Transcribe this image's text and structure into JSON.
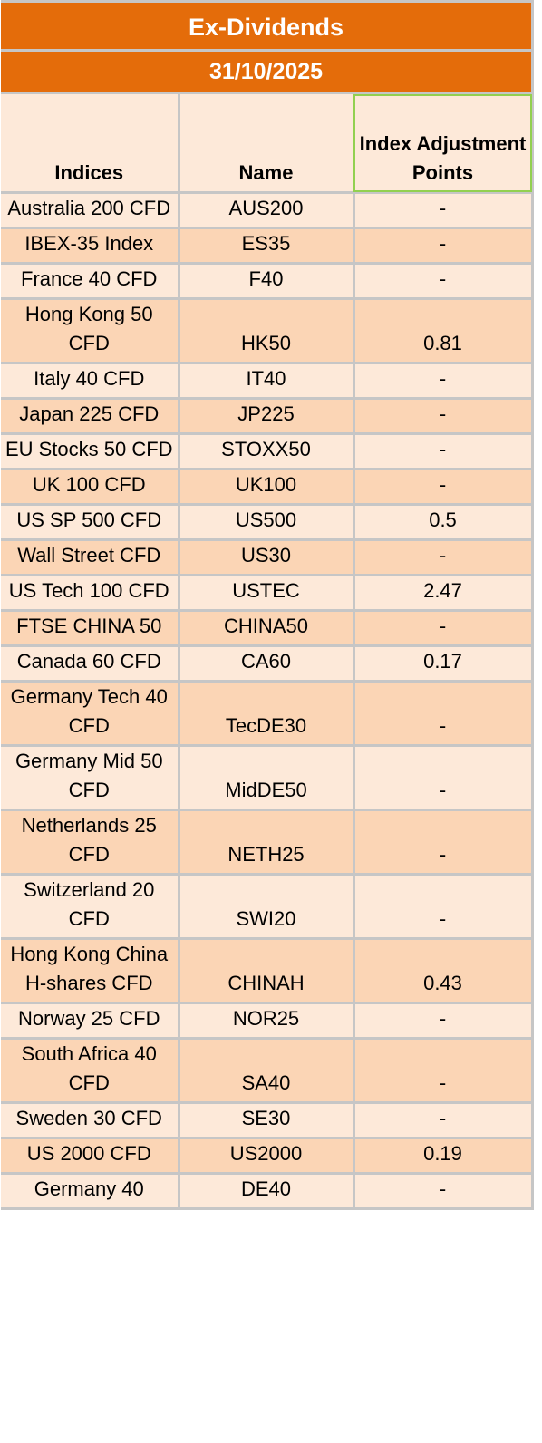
{
  "title": "Ex-Dividends",
  "date": "31/10/2025",
  "headers": {
    "indices": "Indices",
    "name": "Name",
    "points": "Index Adjustment Points"
  },
  "rows": [
    {
      "index": "Australia 200 CFD",
      "name": "AUS200",
      "points": "-"
    },
    {
      "index": "IBEX-35 Index",
      "name": "ES35",
      "points": "-"
    },
    {
      "index": "France 40 CFD",
      "name": "F40",
      "points": "-"
    },
    {
      "index": "Hong Kong 50 CFD",
      "name": "HK50",
      "points": "0.81"
    },
    {
      "index": "Italy 40 CFD",
      "name": "IT40",
      "points": "-"
    },
    {
      "index": "Japan 225 CFD",
      "name": "JP225",
      "points": "-"
    },
    {
      "index": "EU Stocks 50 CFD",
      "name": "STOXX50",
      "points": "-"
    },
    {
      "index": "UK 100 CFD",
      "name": "UK100",
      "points": "-"
    },
    {
      "index": "US SP 500 CFD",
      "name": "US500",
      "points": "0.5"
    },
    {
      "index": "Wall Street CFD",
      "name": "US30",
      "points": "-"
    },
    {
      "index": "US Tech 100 CFD",
      "name": "USTEC",
      "points": "2.47"
    },
    {
      "index": "FTSE CHINA 50",
      "name": "CHINA50",
      "points": "-"
    },
    {
      "index": "Canada 60 CFD",
      "name": "CA60",
      "points": "0.17"
    },
    {
      "index": "Germany Tech 40 CFD",
      "name": "TecDE30",
      "points": "-"
    },
    {
      "index": "Germany Mid 50 CFD",
      "name": "MidDE50",
      "points": "-"
    },
    {
      "index": "Netherlands 25 CFD",
      "name": "NETH25",
      "points": "-"
    },
    {
      "index": "Switzerland 20 CFD",
      "name": "SWI20",
      "points": "-"
    },
    {
      "index": "Hong Kong China H-shares CFD",
      "name": "CHINAH",
      "points": "0.43"
    },
    {
      "index": "Norway 25 CFD",
      "name": "NOR25",
      "points": "-"
    },
    {
      "index": "South Africa 40 CFD",
      "name": "SA40",
      "points": "-"
    },
    {
      "index": "Sweden 30 CFD",
      "name": "SE30",
      "points": "-"
    },
    {
      "index": "US 2000 CFD",
      "name": "US2000",
      "points": "0.19"
    },
    {
      "index": "Germany 40",
      "name": "DE40",
      "points": "-"
    }
  ]
}
